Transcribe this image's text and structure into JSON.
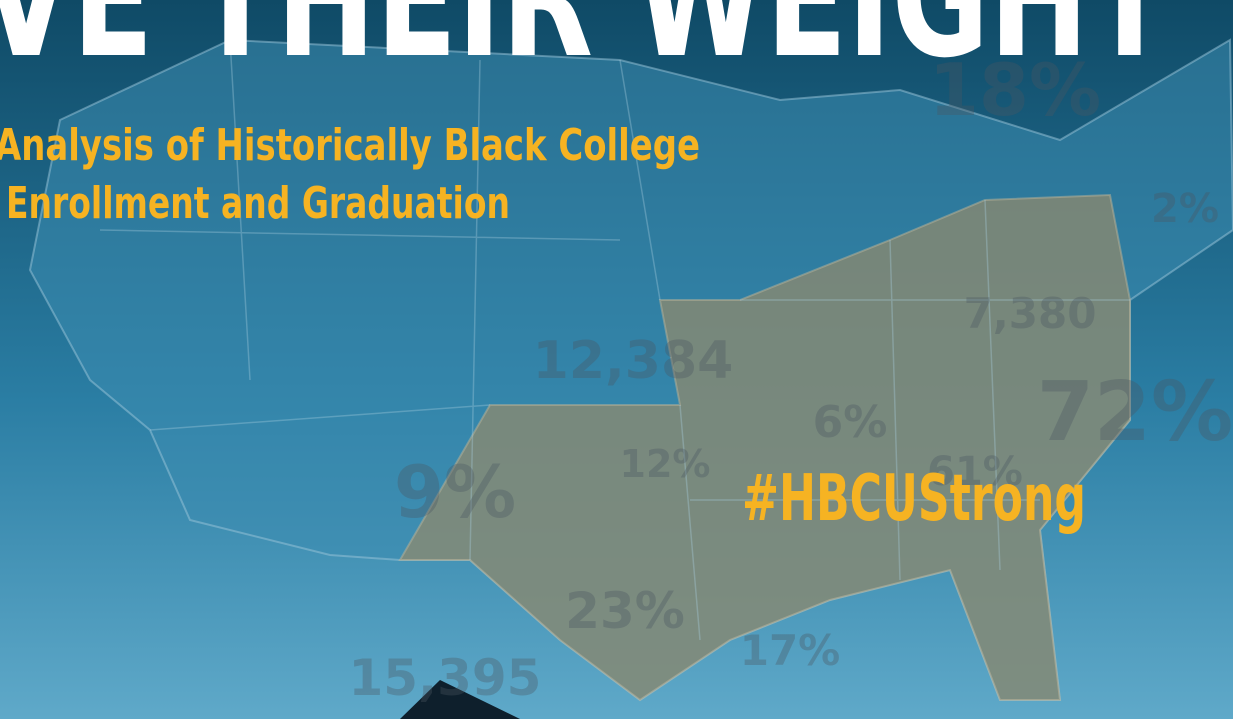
{
  "header": {
    "title": "VE THEIR WEIGHT",
    "subtitle_lines": [
      "Analysis of Historically Black College",
      "Enrollment and Graduation"
    ],
    "hashtag": "#HBCUStrong"
  },
  "map_labels": [
    "18%",
    "2%",
    "7,380",
    "12,384",
    "72%",
    "6%",
    "12%",
    "61%",
    "9%",
    "23%",
    "17%",
    "15,395"
  ]
}
